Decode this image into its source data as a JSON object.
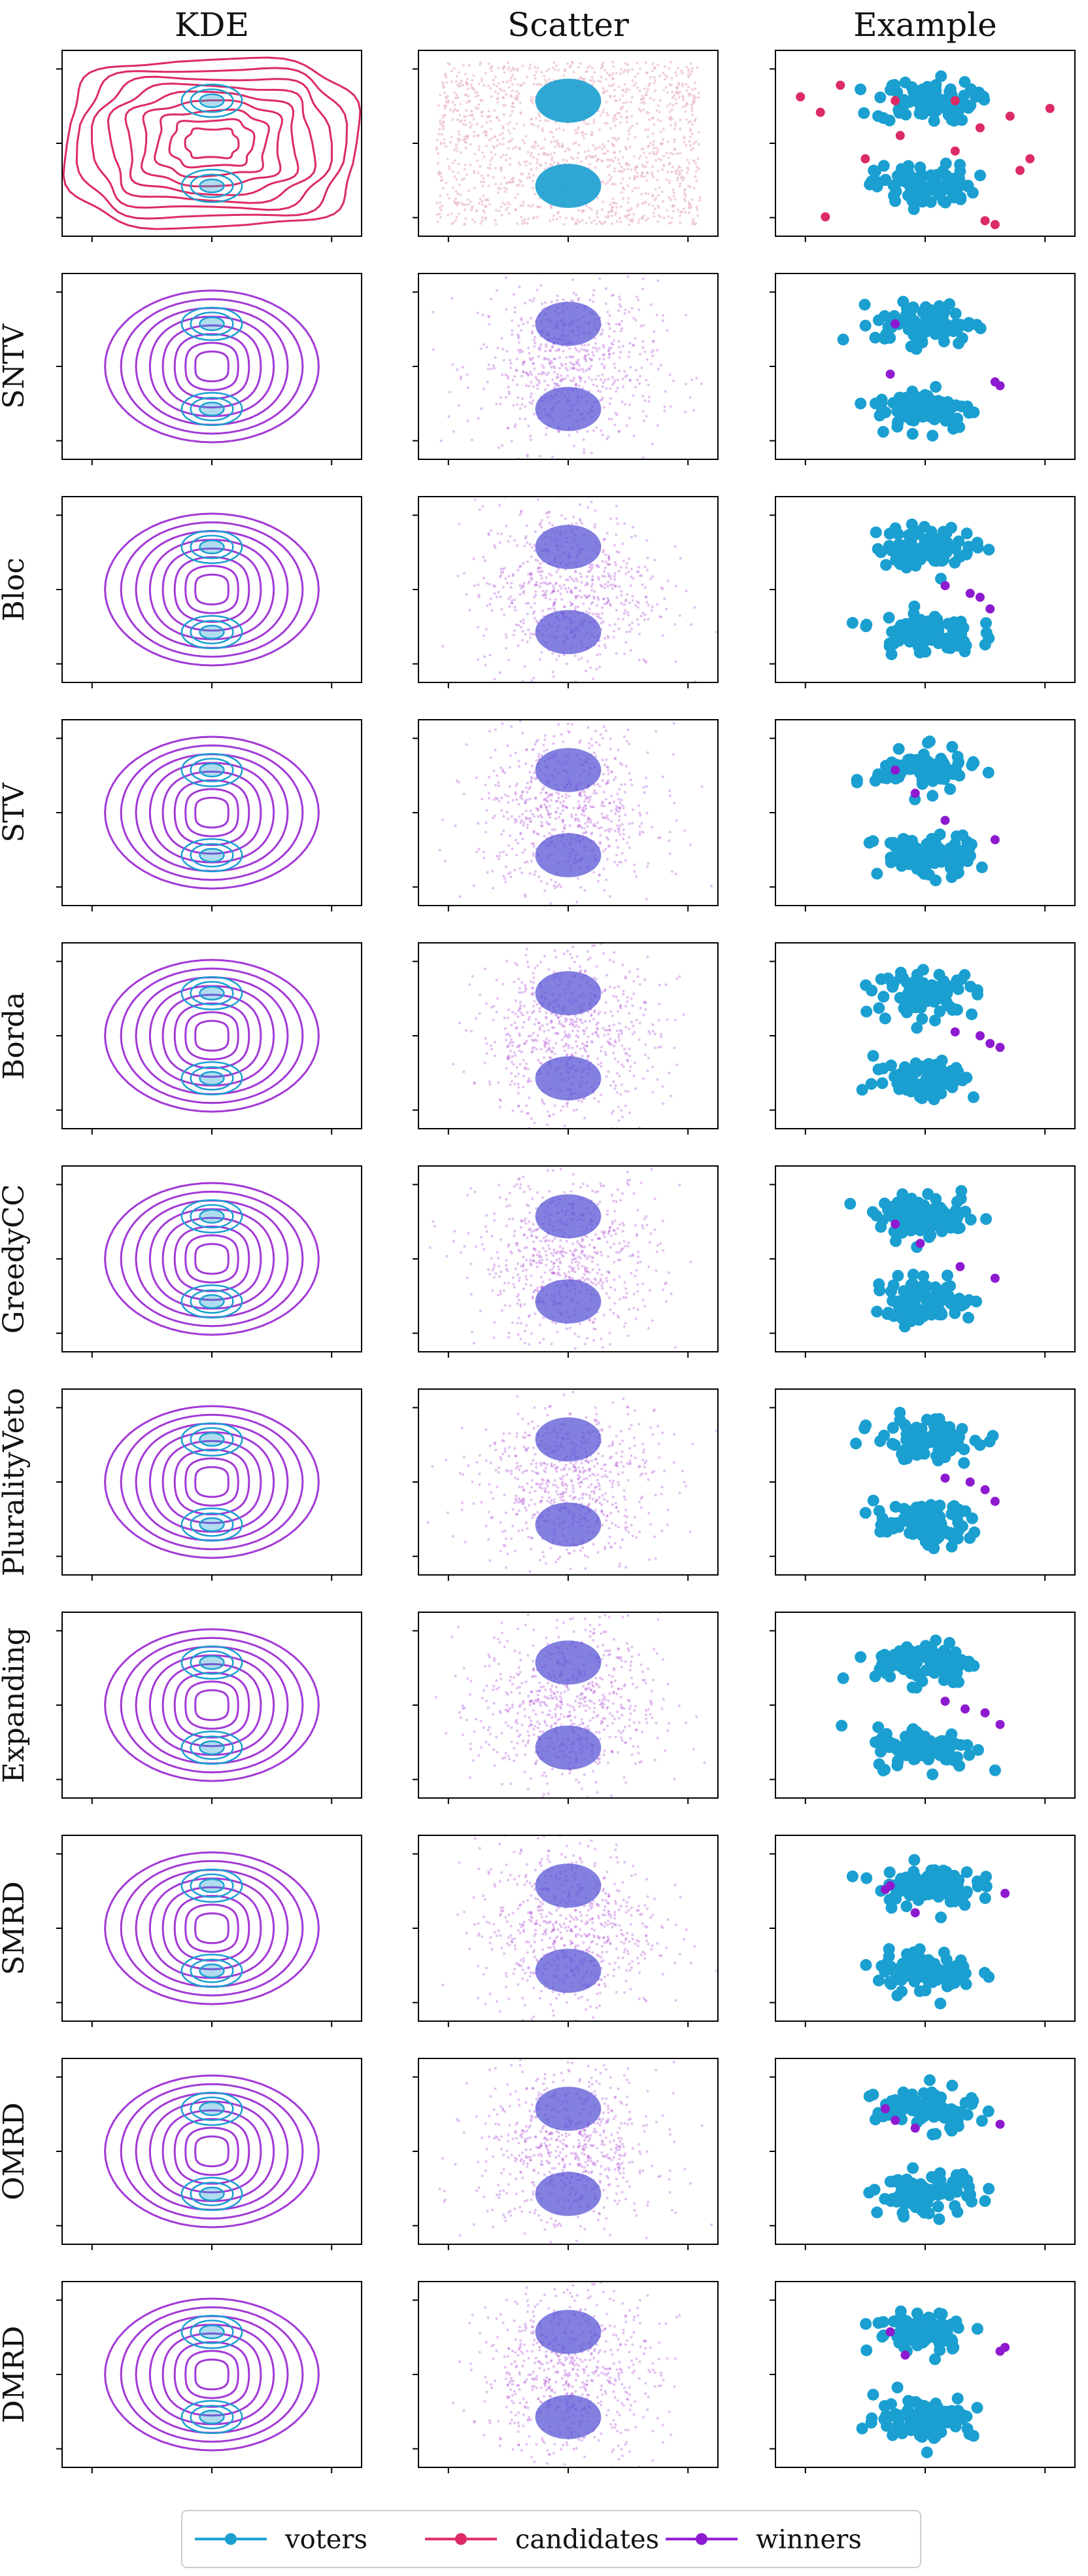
{
  "columns": [
    "KDE",
    "Scatter",
    "Example"
  ],
  "rows": [
    "",
    "SNTV",
    "Bloc",
    "STV",
    "Borda",
    "GreedyCC",
    "PluralityVeto",
    "Expanding",
    "SMRD",
    "OMRD",
    "DMRD"
  ],
  "colors": {
    "voters": "#1a9fd0",
    "candidates": "#dc2b66",
    "winners": "#8e1ad0",
    "kde_winner": "#a339d6",
    "kde_candidate": "#dc2b66",
    "scatter_winner": "#b04ad8",
    "scatter_candidate": "#e7b3c6"
  },
  "legend": {
    "items": [
      {
        "label": "voters",
        "color_key": "voters"
      },
      {
        "label": "candidates",
        "color_key": "candidates"
      },
      {
        "label": "winners",
        "color_key": "winners"
      }
    ]
  },
  "chart_data": {
    "type": "scatter",
    "description_columns": [
      "KDE",
      "Scatter",
      "Example"
    ],
    "voter_clusters": [
      {
        "center": [
          0.0,
          0.55
        ],
        "spread": [
          0.55,
          0.3
        ]
      },
      {
        "center": [
          0.0,
          -0.55
        ],
        "spread": [
          0.55,
          0.3
        ]
      }
    ],
    "xlim": [
      -1.5,
      1.5
    ],
    "ylim": [
      -1.2,
      1.2
    ],
    "example_candidates": [
      [
        -1.25,
        0.6
      ],
      [
        -0.85,
        0.75
      ],
      [
        -1.05,
        0.4
      ],
      [
        -0.3,
        0.55
      ],
      [
        0.3,
        0.55
      ],
      [
        0.85,
        0.35
      ],
      [
        1.25,
        0.45
      ],
      [
        -0.25,
        0.1
      ],
      [
        0.55,
        0.2
      ],
      [
        1.05,
        -0.2
      ],
      [
        0.95,
        -0.35
      ],
      [
        -1.0,
        -0.95
      ],
      [
        0.6,
        -1.0
      ],
      [
        0.7,
        -1.05
      ],
      [
        0.3,
        -0.1
      ],
      [
        -0.6,
        -0.2
      ]
    ],
    "example_winners": {
      "SNTV": [
        [
          -0.3,
          0.55
        ],
        [
          -0.35,
          -0.1
        ],
        [
          0.7,
          -0.2
        ],
        [
          0.75,
          -0.25
        ]
      ],
      "Bloc": [
        [
          0.2,
          0.05
        ],
        [
          0.45,
          -0.05
        ],
        [
          0.65,
          -0.25
        ],
        [
          0.55,
          -0.1
        ]
      ],
      "STV": [
        [
          -0.3,
          0.55
        ],
        [
          -0.1,
          0.25
        ],
        [
          0.2,
          -0.1
        ],
        [
          0.7,
          -0.35
        ]
      ],
      "Borda": [
        [
          0.3,
          0.05
        ],
        [
          0.55,
          0.0
        ],
        [
          0.75,
          -0.15
        ],
        [
          0.65,
          -0.1
        ]
      ],
      "GreedyCC": [
        [
          -0.3,
          0.45
        ],
        [
          -0.05,
          0.2
        ],
        [
          0.35,
          -0.1
        ],
        [
          0.7,
          -0.25
        ]
      ],
      "PluralityVeto": [
        [
          0.2,
          0.05
        ],
        [
          0.45,
          0.0
        ],
        [
          0.6,
          -0.1
        ],
        [
          0.7,
          -0.25
        ]
      ],
      "Expanding": [
        [
          0.2,
          0.05
        ],
        [
          0.4,
          -0.05
        ],
        [
          0.6,
          -0.1
        ],
        [
          0.75,
          -0.25
        ]
      ],
      "SMRD": [
        [
          -0.35,
          0.55
        ],
        [
          -0.4,
          0.5
        ],
        [
          -0.1,
          0.2
        ],
        [
          0.8,
          0.45
        ]
      ],
      "OMRD": [
        [
          -0.4,
          0.55
        ],
        [
          -0.3,
          0.4
        ],
        [
          -0.1,
          0.3
        ],
        [
          0.75,
          0.35
        ]
      ],
      "DMRD": [
        [
          -0.35,
          0.55
        ],
        [
          -0.2,
          0.25
        ],
        [
          0.8,
          0.35
        ],
        [
          0.75,
          0.3
        ]
      ]
    }
  }
}
